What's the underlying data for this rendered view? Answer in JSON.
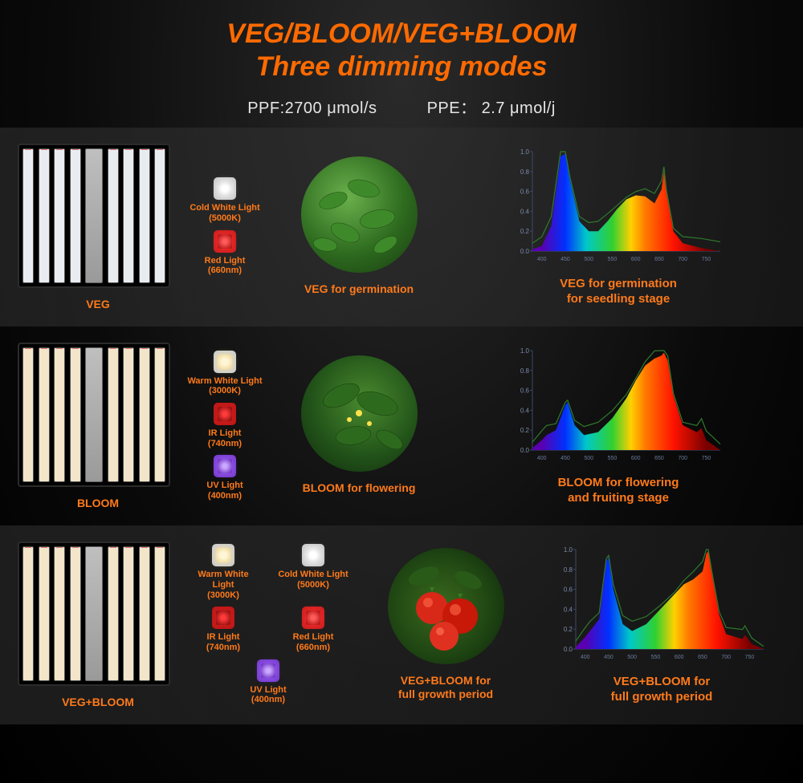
{
  "header": {
    "title_line1": "VEG/BLOOM/VEG+BLOOM",
    "title_line2": "Three dimming modes",
    "spec_ppf": "PPF:2700 μmol/s",
    "spec_ppe": "PPE： 2.7 μmol/j",
    "title_color": "#ff6a00",
    "title_fontsize": 34
  },
  "colors": {
    "accent": "#ff7a1a",
    "bg_dark": "#0a0a0a"
  },
  "chips": {
    "cold_white": {
      "label_l1": "Cold White Light",
      "label_l2": "(5000K)",
      "color": "#ffffff"
    },
    "warm_white": {
      "label_l1": "Warm White Light",
      "label_l2": "(3000K)",
      "color": "#fff2c8"
    },
    "red": {
      "label_l1": "Red Light",
      "label_l2": "(660nm)",
      "color": "#d02020"
    },
    "ir": {
      "label_l1": "IR Light",
      "label_l2": "(740nm)",
      "color": "#b01010"
    },
    "uv": {
      "label_l1": "UV Light",
      "label_l2": "(400nm)",
      "color": "#8a40e0"
    }
  },
  "rows": {
    "veg": {
      "panel_label": "VEG",
      "plant_label": "VEG for germination",
      "chart_label_l1": "VEG for germination",
      "chart_label_l2": "for seedling stage",
      "spectrum": {
        "type": "area-spectrum",
        "xlim": [
          380,
          780
        ],
        "ylim": [
          0,
          1.0
        ],
        "ytick_step": 0.2,
        "background_color": "transparent",
        "axis_color": "#3a4a6a",
        "line_color": "#2e7a2e",
        "gradient_stops": [
          {
            "x": 400,
            "c": "#5a00b0"
          },
          {
            "x": 450,
            "c": "#0030ff"
          },
          {
            "x": 495,
            "c": "#00c8c8"
          },
          {
            "x": 550,
            "c": "#30d030"
          },
          {
            "x": 590,
            "c": "#ffd000"
          },
          {
            "x": 620,
            "c": "#ff7a00"
          },
          {
            "x": 680,
            "c": "#ff1200"
          },
          {
            "x": 750,
            "c": "#7a0000"
          }
        ],
        "curve": [
          [
            380,
            0.02
          ],
          [
            400,
            0.05
          ],
          [
            420,
            0.25
          ],
          [
            440,
            0.95
          ],
          [
            450,
            0.98
          ],
          [
            460,
            0.72
          ],
          [
            480,
            0.3
          ],
          [
            500,
            0.2
          ],
          [
            520,
            0.2
          ],
          [
            540,
            0.3
          ],
          [
            560,
            0.42
          ],
          [
            580,
            0.52
          ],
          [
            600,
            0.56
          ],
          [
            620,
            0.55
          ],
          [
            640,
            0.48
          ],
          [
            655,
            0.62
          ],
          [
            660,
            0.8
          ],
          [
            665,
            0.6
          ],
          [
            680,
            0.2
          ],
          [
            700,
            0.08
          ],
          [
            740,
            0.03
          ],
          [
            780,
            0.0
          ]
        ]
      }
    },
    "bloom": {
      "panel_label": "BLOOM",
      "plant_label": "BLOOM for flowering",
      "chart_label_l1": "BLOOM for flowering",
      "chart_label_l2": "and fruiting stage",
      "spectrum": {
        "type": "area-spectrum",
        "xlim": [
          380,
          780
        ],
        "ylim": [
          0,
          1.0
        ],
        "ytick_step": 0.2,
        "axis_color": "#3a4a6a",
        "line_color": "#2e7a2e",
        "gradient_stops": [
          {
            "x": 400,
            "c": "#5a00b0"
          },
          {
            "x": 450,
            "c": "#0030ff"
          },
          {
            "x": 495,
            "c": "#00c8c8"
          },
          {
            "x": 550,
            "c": "#30d030"
          },
          {
            "x": 590,
            "c": "#ffd000"
          },
          {
            "x": 620,
            "c": "#ff7a00"
          },
          {
            "x": 680,
            "c": "#ff1200"
          },
          {
            "x": 750,
            "c": "#7a0000"
          }
        ],
        "curve": [
          [
            380,
            0.02
          ],
          [
            400,
            0.1
          ],
          [
            410,
            0.15
          ],
          [
            430,
            0.2
          ],
          [
            450,
            0.45
          ],
          [
            455,
            0.48
          ],
          [
            470,
            0.25
          ],
          [
            490,
            0.15
          ],
          [
            520,
            0.18
          ],
          [
            550,
            0.32
          ],
          [
            580,
            0.52
          ],
          [
            600,
            0.7
          ],
          [
            620,
            0.85
          ],
          [
            640,
            0.92
          ],
          [
            655,
            0.95
          ],
          [
            660,
            0.98
          ],
          [
            668,
            0.9
          ],
          [
            680,
            0.55
          ],
          [
            700,
            0.25
          ],
          [
            730,
            0.18
          ],
          [
            740,
            0.22
          ],
          [
            750,
            0.1
          ],
          [
            780,
            0.0
          ]
        ]
      }
    },
    "combo": {
      "panel_label": "VEG+BLOOM",
      "plant_label_l1": "VEG+BLOOM  for",
      "plant_label_l2": "full growth period",
      "chart_label_l1": "VEG+BLOOM  for",
      "chart_label_l2": "full growth period",
      "spectrum": {
        "type": "area-spectrum",
        "xlim": [
          380,
          780
        ],
        "ylim": [
          0,
          1.0
        ],
        "ytick_step": 0.2,
        "axis_color": "#3a4a6a",
        "line_color": "#2e7a2e",
        "gradient_stops": [
          {
            "x": 400,
            "c": "#5a00b0"
          },
          {
            "x": 450,
            "c": "#0030ff"
          },
          {
            "x": 495,
            "c": "#00c8c8"
          },
          {
            "x": 550,
            "c": "#30d030"
          },
          {
            "x": 590,
            "c": "#ffd000"
          },
          {
            "x": 620,
            "c": "#ff7a00"
          },
          {
            "x": 680,
            "c": "#ff1200"
          },
          {
            "x": 750,
            "c": "#7a0000"
          }
        ],
        "curve": [
          [
            380,
            0.02
          ],
          [
            400,
            0.12
          ],
          [
            410,
            0.18
          ],
          [
            430,
            0.3
          ],
          [
            445,
            0.88
          ],
          [
            450,
            0.92
          ],
          [
            460,
            0.6
          ],
          [
            480,
            0.25
          ],
          [
            500,
            0.18
          ],
          [
            530,
            0.25
          ],
          [
            560,
            0.4
          ],
          [
            590,
            0.55
          ],
          [
            610,
            0.65
          ],
          [
            630,
            0.7
          ],
          [
            650,
            0.78
          ],
          [
            658,
            0.96
          ],
          [
            662,
            0.98
          ],
          [
            670,
            0.75
          ],
          [
            685,
            0.35
          ],
          [
            700,
            0.15
          ],
          [
            735,
            0.1
          ],
          [
            740,
            0.14
          ],
          [
            755,
            0.05
          ],
          [
            780,
            0.0
          ]
        ]
      }
    }
  }
}
